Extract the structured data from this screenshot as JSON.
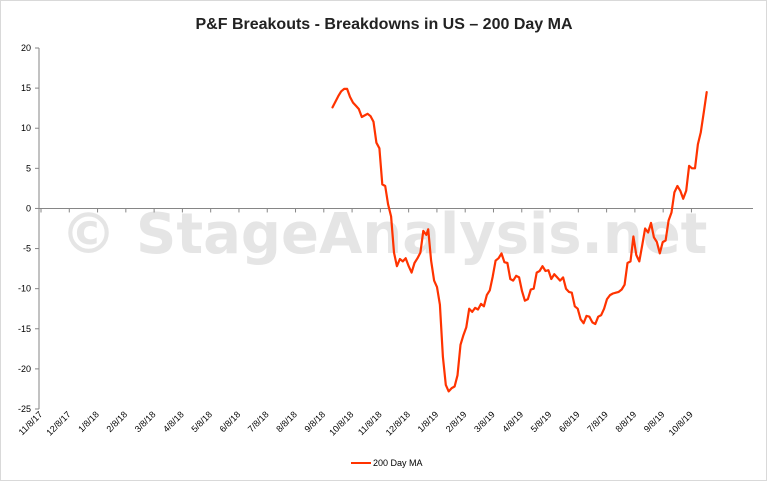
{
  "chart_data": {
    "type": "line",
    "title": "P&F Breakouts - Breakdowns in US – 200 Day MA",
    "watermark": "© StageAnalysis.net",
    "xlabel": "",
    "ylabel": "",
    "ylim": [
      -25,
      20
    ],
    "yticks": [
      20,
      15,
      10,
      5,
      0,
      -5,
      -10,
      -15,
      -20,
      -25
    ],
    "xlim": [
      "2017-11-08",
      "2019-10-08"
    ],
    "xticks": [
      "11/8/17",
      "12/8/17",
      "1/8/18",
      "2/8/18",
      "3/8/18",
      "4/8/18",
      "5/8/18",
      "6/8/18",
      "7/8/18",
      "8/8/18",
      "9/8/18",
      "10/8/18",
      "11/8/18",
      "12/8/18",
      "1/8/19",
      "2/8/19",
      "3/8/19",
      "4/8/19",
      "5/8/19",
      "6/8/19",
      "7/8/19",
      "8/8/19",
      "9/8/19",
      "10/8/19"
    ],
    "grid": false,
    "legend_position": "bottom",
    "series": [
      {
        "name": "200 Day MA",
        "color": "#ff3300",
        "points": [
          [
            "2018-08-21",
            12.6
          ],
          [
            "2018-08-24",
            13.3
          ],
          [
            "2018-08-27",
            14.0
          ],
          [
            "2018-08-30",
            14.6
          ],
          [
            "2018-09-02",
            14.9
          ],
          [
            "2018-09-05",
            14.9
          ],
          [
            "2018-09-08",
            13.9
          ],
          [
            "2018-09-11",
            13.2
          ],
          [
            "2018-09-14",
            12.8
          ],
          [
            "2018-09-17",
            12.4
          ],
          [
            "2018-09-20",
            11.4
          ],
          [
            "2018-09-23",
            11.6
          ],
          [
            "2018-09-26",
            11.8
          ],
          [
            "2018-09-29",
            11.5
          ],
          [
            "2018-10-02",
            10.8
          ],
          [
            "2018-10-05",
            8.2
          ],
          [
            "2018-10-08",
            7.5
          ],
          [
            "2018-10-11",
            3.0
          ],
          [
            "2018-10-14",
            2.8
          ],
          [
            "2018-10-17",
            0.5
          ],
          [
            "2018-10-20",
            -1.0
          ],
          [
            "2018-10-23",
            -5.5
          ],
          [
            "2018-10-26",
            -7.2
          ],
          [
            "2018-10-29",
            -6.3
          ],
          [
            "2018-11-01",
            -6.6
          ],
          [
            "2018-11-04",
            -6.2
          ],
          [
            "2018-11-07",
            -7.2
          ],
          [
            "2018-11-10",
            -8.0
          ],
          [
            "2018-11-13",
            -6.8
          ],
          [
            "2018-11-16",
            -6.2
          ],
          [
            "2018-11-19",
            -5.5
          ],
          [
            "2018-11-22",
            -2.8
          ],
          [
            "2018-11-25",
            -3.3
          ],
          [
            "2018-11-27",
            -2.6
          ],
          [
            "2018-11-30",
            -6.5
          ],
          [
            "2018-12-03",
            -9.0
          ],
          [
            "2018-12-06",
            -9.8
          ],
          [
            "2018-12-09",
            -12.0
          ],
          [
            "2018-12-12",
            -18.5
          ],
          [
            "2018-12-15",
            -22.0
          ],
          [
            "2018-12-18",
            -22.8
          ],
          [
            "2018-12-21",
            -22.4
          ],
          [
            "2018-12-24",
            -22.2
          ],
          [
            "2018-12-27",
            -20.8
          ],
          [
            "2018-12-30",
            -17.0
          ],
          [
            "2019-01-02",
            -15.8
          ],
          [
            "2019-01-05",
            -14.8
          ],
          [
            "2019-01-08",
            -12.5
          ],
          [
            "2019-01-11",
            -12.9
          ],
          [
            "2019-01-14",
            -12.4
          ],
          [
            "2019-01-17",
            -12.6
          ],
          [
            "2019-01-20",
            -11.9
          ],
          [
            "2019-01-23",
            -12.2
          ],
          [
            "2019-01-26",
            -10.8
          ],
          [
            "2019-01-29",
            -10.2
          ],
          [
            "2019-02-01",
            -8.5
          ],
          [
            "2019-02-04",
            -6.5
          ],
          [
            "2019-02-07",
            -6.2
          ],
          [
            "2019-02-10",
            -5.6
          ],
          [
            "2019-02-13",
            -6.7
          ],
          [
            "2019-02-16",
            -6.8
          ],
          [
            "2019-02-19",
            -8.8
          ],
          [
            "2019-02-22",
            -9.0
          ],
          [
            "2019-02-25",
            -8.4
          ],
          [
            "2019-02-28",
            -8.6
          ],
          [
            "2019-03-03",
            -10.3
          ],
          [
            "2019-03-06",
            -11.5
          ],
          [
            "2019-03-09",
            -11.3
          ],
          [
            "2019-03-12",
            -10.1
          ],
          [
            "2019-03-15",
            -10.0
          ],
          [
            "2019-03-18",
            -8.0
          ],
          [
            "2019-03-21",
            -7.8
          ],
          [
            "2019-03-24",
            -7.2
          ],
          [
            "2019-03-27",
            -7.8
          ],
          [
            "2019-03-30",
            -7.7
          ],
          [
            "2019-04-02",
            -8.8
          ],
          [
            "2019-04-05",
            -8.2
          ],
          [
            "2019-04-08",
            -8.6
          ],
          [
            "2019-04-11",
            -9.0
          ],
          [
            "2019-04-14",
            -8.6
          ],
          [
            "2019-04-17",
            -10.0
          ],
          [
            "2019-04-20",
            -10.4
          ],
          [
            "2019-04-23",
            -10.5
          ],
          [
            "2019-04-26",
            -12.2
          ],
          [
            "2019-04-29",
            -12.5
          ],
          [
            "2019-05-02",
            -13.8
          ],
          [
            "2019-05-05",
            -14.3
          ],
          [
            "2019-05-08",
            -13.4
          ],
          [
            "2019-05-11",
            -13.5
          ],
          [
            "2019-05-14",
            -14.2
          ],
          [
            "2019-05-17",
            -14.4
          ],
          [
            "2019-05-20",
            -13.5
          ],
          [
            "2019-05-23",
            -13.3
          ],
          [
            "2019-05-26",
            -12.5
          ],
          [
            "2019-05-29",
            -11.3
          ],
          [
            "2019-06-01",
            -10.8
          ],
          [
            "2019-06-04",
            -10.6
          ],
          [
            "2019-06-07",
            -10.5
          ],
          [
            "2019-06-10",
            -10.4
          ],
          [
            "2019-06-13",
            -10.1
          ],
          [
            "2019-06-16",
            -9.5
          ],
          [
            "2019-06-19",
            -6.8
          ],
          [
            "2019-06-22",
            -6.6
          ],
          [
            "2019-06-25",
            -3.5
          ],
          [
            "2019-06-28",
            -5.8
          ],
          [
            "2019-07-01",
            -6.6
          ],
          [
            "2019-07-04",
            -4.6
          ],
          [
            "2019-07-07",
            -2.5
          ],
          [
            "2019-07-10",
            -3.0
          ],
          [
            "2019-07-13",
            -1.8
          ],
          [
            "2019-07-16",
            -3.6
          ],
          [
            "2019-07-19",
            -4.2
          ],
          [
            "2019-07-22",
            -5.6
          ],
          [
            "2019-07-25",
            -4.2
          ],
          [
            "2019-07-28",
            -4.0
          ],
          [
            "2019-07-31",
            -1.5
          ],
          [
            "2019-08-03",
            -0.5
          ],
          [
            "2019-08-06",
            2.0
          ],
          [
            "2019-08-09",
            2.8
          ],
          [
            "2019-08-12",
            2.2
          ],
          [
            "2019-08-15",
            1.2
          ],
          [
            "2019-08-18",
            2.2
          ],
          [
            "2019-08-21",
            5.3
          ],
          [
            "2019-08-24",
            5.0
          ],
          [
            "2019-08-27",
            5.0
          ],
          [
            "2019-08-30",
            8.0
          ],
          [
            "2019-09-02",
            9.5
          ],
          [
            "2019-09-05",
            12.0
          ],
          [
            "2019-09-08",
            14.5
          ]
        ]
      }
    ]
  }
}
